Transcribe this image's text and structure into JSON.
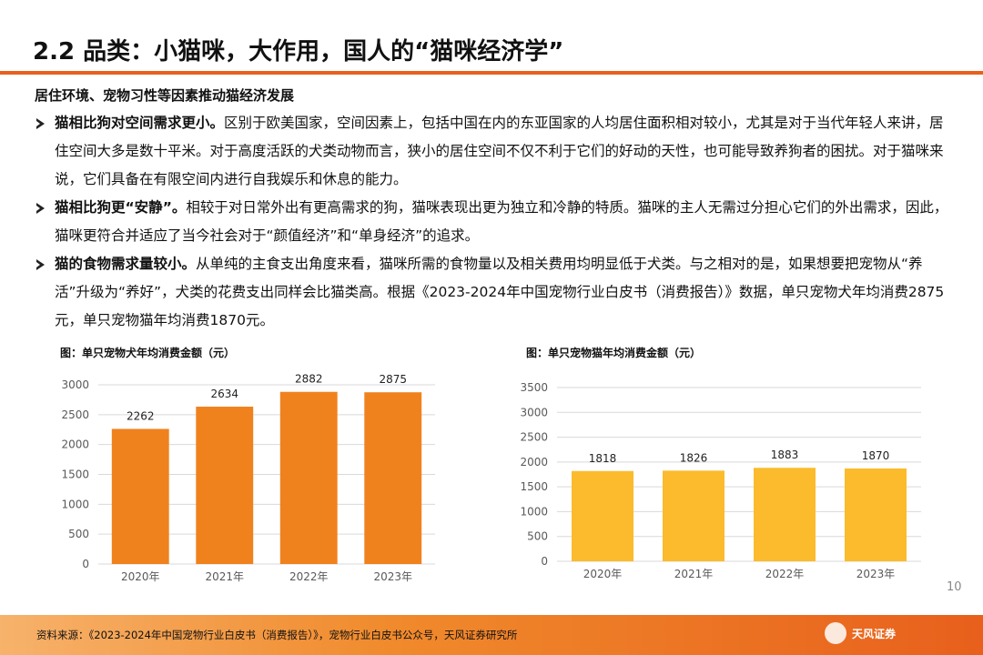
{
  "header": {
    "title": "2.2 品类：小猫咪，大作用，国人的“猫咪经济学”"
  },
  "subtitle": "居住环境、宠物习性等因素推动猫经济发展",
  "bullets": [
    {
      "lead": "猫相比狗对空间需求更小。",
      "text": "区别于欧美国家，空间因素上，包括中国在内的东亚国家的人均居住面积相对较小，尤其是对于当代年轻人来讲，居住空间大多是数十平米。对于高度活跃的犬类动物而言，狭小的居住空间不仅不利于它们的好动的天性，也可能导致养狗者的困扰。对于猫咪来说，它们具备在有限空间内进行自我娱乐和休息的能力。"
    },
    {
      "lead": "猫相比狗更“安静”。",
      "text": "相较于对日常外出有更高需求的狗，猫咪表现出更为独立和冷静的特质。猫咪的主人无需过分担心它们的外出需求，因此，猫咪更符合并适应了当今社会对于“颜值经济”和“单身经济”的追求。"
    },
    {
      "lead": "猫的食物需求量较小。",
      "text": "从单纯的主食支出角度来看，猫咪所需的食物量以及相关费用均明显低于犬类。与之相对的是，如果想要把宠物从“养活”升级为“养好”，犬类的花费支出同样会比猫类高。根据《2023-2024年中国宠物行业白皮书（消费报告）》数据，单只宠物犬年均消费2875元，单只宠物猫年均消费1870元。"
    }
  ],
  "chart_data": [
    {
      "type": "bar",
      "title": "图：单只宠物犬年均消费金额（元）",
      "categories": [
        "2020年",
        "2021年",
        "2022年",
        "2023年"
      ],
      "values": [
        2262,
        2634,
        2882,
        2875
      ],
      "color": "#f0821e",
      "ylim": [
        0,
        3000
      ],
      "yticks": [
        0,
        500,
        1000,
        1500,
        2000,
        2500,
        3000
      ],
      "grid": true
    },
    {
      "type": "bar",
      "title": "图：单只宠物猫年均消费金额（元）",
      "categories": [
        "2020年",
        "2021年",
        "2022年",
        "2023年"
      ],
      "values": [
        1818,
        1826,
        1883,
        1870
      ],
      "color": "#fbbb2c",
      "ylim": [
        0,
        3500
      ],
      "yticks": [
        0,
        500,
        1000,
        1500,
        2000,
        2500,
        3000,
        3500
      ],
      "grid": true
    }
  ],
  "page_number": "10",
  "footer": {
    "source": "资料来源：《2023-2024年中国宠物行业白皮书（消费报告）》，宠物行业白皮书公众号，天风证券研究所",
    "logo": "天风证券"
  }
}
